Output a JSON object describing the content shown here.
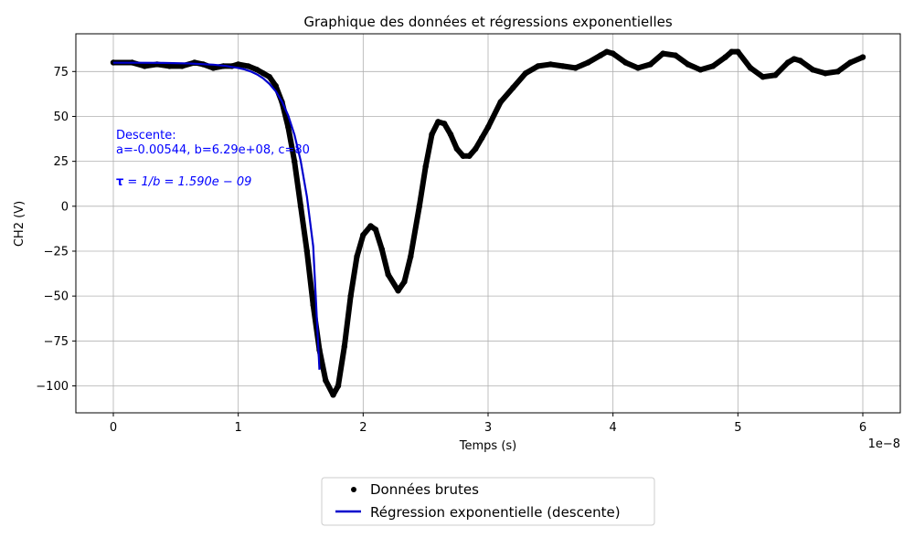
{
  "chart_data": {
    "type": "line",
    "title": "Graphique des données et régressions exponentielles",
    "xlabel": "Temps (s)",
    "ylabel": "CH2 (V)",
    "x_offset_text": "1e−8",
    "xlim": [
      -0.3,
      6.3
    ],
    "ylim": [
      -115,
      96
    ],
    "x_ticks": [
      0,
      1,
      2,
      3,
      4,
      5,
      6
    ],
    "x_tick_labels": [
      "0",
      "1",
      "2",
      "3",
      "4",
      "5",
      "6"
    ],
    "y_ticks": [
      -100,
      -75,
      -50,
      -25,
      0,
      25,
      50,
      75
    ],
    "y_tick_labels": [
      "−100",
      "−75",
      "−50",
      "−25",
      "0",
      "25",
      "50",
      "75"
    ],
    "grid": true,
    "legend_position": "below-center",
    "series": [
      {
        "name": "Données brutes",
        "style": "points",
        "color": "#000000",
        "x": [
          0,
          0.15,
          0.25,
          0.35,
          0.45,
          0.55,
          0.65,
          0.72,
          0.8,
          0.88,
          0.95,
          1.0,
          1.08,
          1.15,
          1.2,
          1.25,
          1.3,
          1.35,
          1.4,
          1.45,
          1.5,
          1.55,
          1.6,
          1.65,
          1.7,
          1.76,
          1.8,
          1.85,
          1.9,
          1.95,
          2.0,
          2.06,
          2.1,
          2.15,
          2.2,
          2.28,
          2.33,
          2.38,
          2.45,
          2.5,
          2.55,
          2.6,
          2.65,
          2.7,
          2.75,
          2.8,
          2.85,
          2.9,
          2.95,
          3.0,
          3.1,
          3.2,
          3.3,
          3.4,
          3.5,
          3.6,
          3.7,
          3.8,
          3.9,
          3.95,
          4.0,
          4.1,
          4.2,
          4.3,
          4.4,
          4.5,
          4.6,
          4.7,
          4.8,
          4.9,
          4.95,
          5.0,
          5.1,
          5.2,
          5.3,
          5.4,
          5.45,
          5.5,
          5.6,
          5.7,
          5.8,
          5.9,
          6.0
        ],
        "y": [
          80,
          80,
          78,
          79,
          78,
          78,
          80,
          79,
          77,
          78,
          78,
          79,
          78,
          76,
          74,
          72,
          67,
          58,
          44,
          25,
          0,
          -25,
          -55,
          -80,
          -97,
          -105,
          -100,
          -78,
          -50,
          -28,
          -16,
          -11,
          -13,
          -24,
          -38,
          -47,
          -42,
          -28,
          0,
          22,
          40,
          47,
          46,
          40,
          32,
          28,
          28,
          32,
          38,
          44,
          58,
          66,
          74,
          78,
          79,
          78,
          77,
          80,
          84,
          86,
          85,
          80,
          77,
          79,
          85,
          84,
          79,
          76,
          78,
          83,
          86,
          86,
          77,
          72,
          73,
          80,
          82,
          81,
          76,
          74,
          75,
          80,
          83
        ]
      },
      {
        "name": "Régression exponentielle (descente)",
        "style": "line",
        "color": "#0000cc",
        "x": [
          0,
          0.2,
          0.4,
          0.6,
          0.8,
          0.9,
          1.0,
          1.05,
          1.1,
          1.15,
          1.2,
          1.25,
          1.3,
          1.35,
          1.4,
          1.45,
          1.5,
          1.55,
          1.6,
          1.65
        ],
        "y": [
          79.9,
          79.9,
          79.8,
          79.5,
          78.8,
          78.1,
          77.0,
          76.2,
          75.0,
          73.4,
          71.2,
          68.1,
          64.0,
          58.3,
          50.5,
          39.8,
          25.2,
          5.2,
          -22.3,
          -91
        ]
      }
    ],
    "annotation": {
      "line1": "Descente:",
      "line2": "a=-0.00544, b=6.29e+08, c=80",
      "tau_prefix": "τ",
      "tau_rest": " = 1/b = 1.590e − 09",
      "color": "#0000ff"
    },
    "legend_entries": [
      {
        "label": "Données brutes",
        "marker": "dot",
        "color": "#000000"
      },
      {
        "label": "Régression exponentielle (descente)",
        "marker": "line",
        "color": "#0000cc"
      }
    ]
  }
}
